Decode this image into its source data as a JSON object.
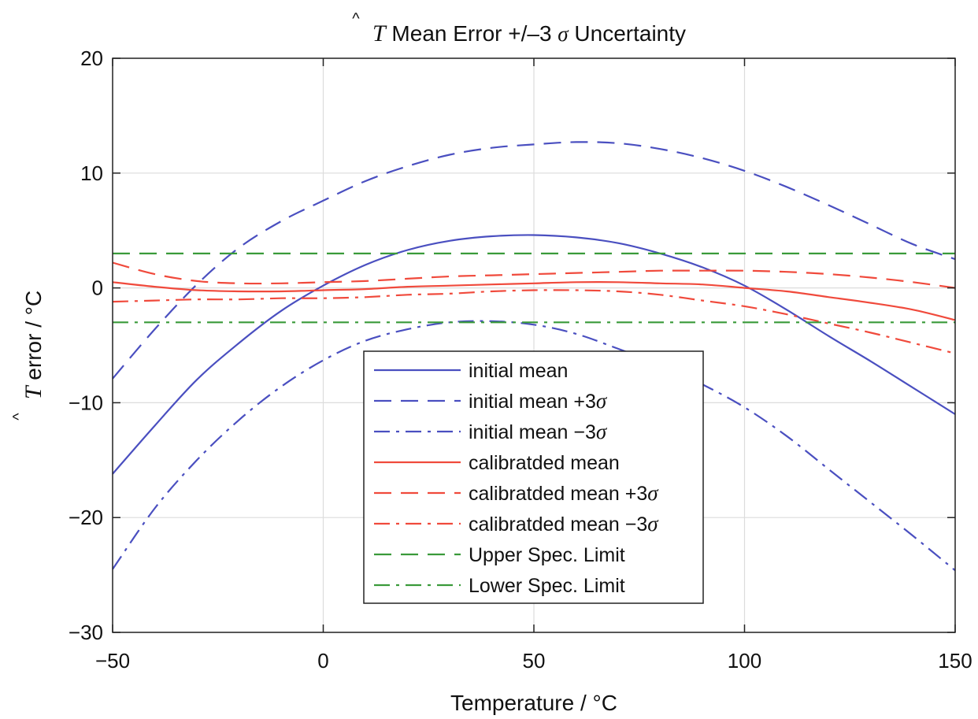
{
  "chart_data": {
    "type": "line",
    "title": {
      "symbol": "T",
      "text": " Mean Error +/–3 ",
      "sigma": "σ",
      "suffix": " Uncertainty"
    },
    "xlabel": "Temperature / °C",
    "ylabel": {
      "symbol": "T",
      "text": " error / °C"
    },
    "xlim": [
      -50,
      150
    ],
    "ylim": [
      -30,
      20
    ],
    "xticks": [
      -50,
      0,
      50,
      100,
      150
    ],
    "yticks": [
      -30,
      -20,
      -10,
      0,
      10,
      20
    ],
    "xtick_labels": [
      "−50",
      "0",
      "50",
      "100",
      "150"
    ],
    "ytick_labels": [
      "−30",
      "−20",
      "−10",
      "0",
      "10",
      "20"
    ],
    "grid": true,
    "legend_position": "lower-center",
    "x": [
      -50,
      -40,
      -30,
      -20,
      -10,
      0,
      10,
      20,
      30,
      40,
      50,
      60,
      70,
      80,
      90,
      100,
      110,
      120,
      130,
      140,
      150
    ],
    "series": [
      {
        "label": "initial mean",
        "sigma": "",
        "color": "#4a4fc0",
        "dash": "solid",
        "y": [
          -16.2,
          -12.0,
          -8.0,
          -4.8,
          -2.0,
          0.2,
          2.0,
          3.3,
          4.1,
          4.5,
          4.6,
          4.4,
          3.9,
          3.0,
          1.8,
          0.2,
          -1.9,
          -4.2,
          -6.4,
          -8.7,
          -11.0
        ]
      },
      {
        "label": "initial mean +3",
        "sigma": "σ",
        "color": "#4a4fc0",
        "dash": "dashed",
        "y": [
          -7.9,
          -3.6,
          0.3,
          3.5,
          5.8,
          7.6,
          9.3,
          10.6,
          11.6,
          12.2,
          12.5,
          12.7,
          12.6,
          12.1,
          11.3,
          10.2,
          8.8,
          7.2,
          5.5,
          3.8,
          2.5
        ]
      },
      {
        "label": "initial mean −3",
        "sigma": "σ",
        "color": "#4a4fc0",
        "dash": "dashdot",
        "y": [
          -24.5,
          -19.2,
          -15.0,
          -11.5,
          -8.6,
          -6.3,
          -4.6,
          -3.6,
          -3.0,
          -2.9,
          -3.2,
          -4.0,
          -5.3,
          -6.7,
          -8.4,
          -10.4,
          -12.9,
          -15.8,
          -18.7,
          -21.6,
          -24.6
        ]
      },
      {
        "label": "calibratded mean",
        "sigma": "",
        "color": "#f04a3c",
        "dash": "solid",
        "y": [
          0.5,
          0.1,
          -0.2,
          -0.3,
          -0.3,
          -0.2,
          -0.1,
          0.1,
          0.2,
          0.3,
          0.4,
          0.5,
          0.5,
          0.4,
          0.3,
          0.0,
          -0.3,
          -0.8,
          -1.3,
          -1.9,
          -2.8
        ]
      },
      {
        "label": "calibratded mean +3",
        "sigma": "σ",
        "color": "#f04a3c",
        "dash": "dashed",
        "y": [
          2.2,
          1.2,
          0.6,
          0.4,
          0.4,
          0.5,
          0.6,
          0.8,
          1.0,
          1.1,
          1.2,
          1.3,
          1.4,
          1.5,
          1.5,
          1.5,
          1.4,
          1.2,
          0.9,
          0.5,
          0.0
        ]
      },
      {
        "label": "calibratded mean −3",
        "sigma": "σ",
        "color": "#f04a3c",
        "dash": "dashdot",
        "y": [
          -1.2,
          -1.1,
          -1.0,
          -1.0,
          -0.9,
          -0.9,
          -0.8,
          -0.6,
          -0.5,
          -0.3,
          -0.2,
          -0.2,
          -0.3,
          -0.6,
          -1.1,
          -1.6,
          -2.3,
          -3.1,
          -3.9,
          -4.8,
          -5.7
        ]
      },
      {
        "label": "Upper Spec. Limit",
        "sigma": "",
        "color": "#3a9a3a",
        "dash": "dashed",
        "y": [
          3,
          3,
          3,
          3,
          3,
          3,
          3,
          3,
          3,
          3,
          3,
          3,
          3,
          3,
          3,
          3,
          3,
          3,
          3,
          3,
          3
        ]
      },
      {
        "label": "Lower Spec. Limit",
        "sigma": "",
        "color": "#3a9a3a",
        "dash": "dashdot",
        "y": [
          -3,
          -3,
          -3,
          -3,
          -3,
          -3,
          -3,
          -3,
          -3,
          -3,
          -3,
          -3,
          -3,
          -3,
          -3,
          -3,
          -3,
          -3,
          -3,
          -3,
          -3
        ]
      }
    ]
  }
}
